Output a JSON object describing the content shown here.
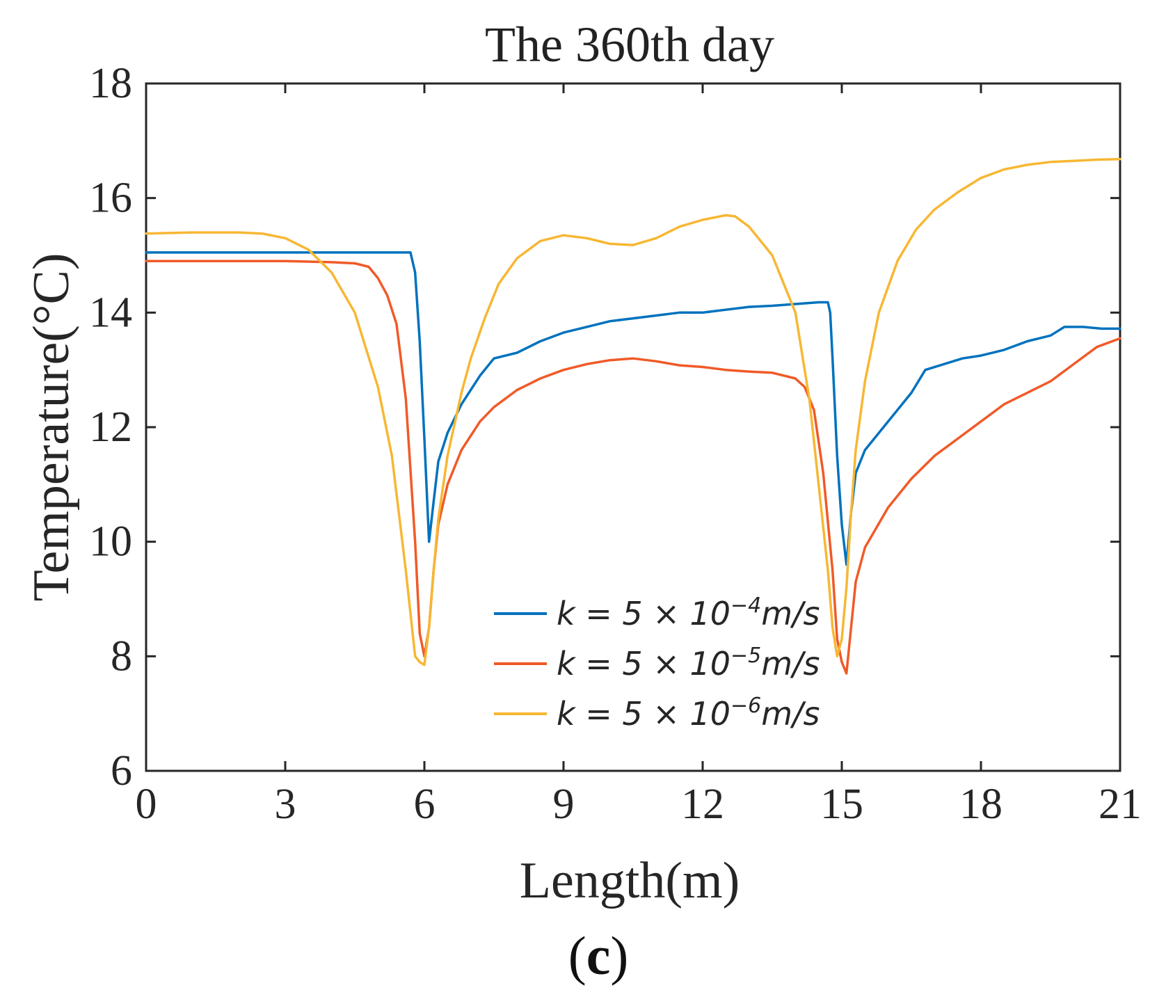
{
  "chart_data": {
    "type": "line",
    "title": "The 360th day",
    "xlabel": "Length(m)",
    "ylabel": "Temperature(°C)",
    "xlim": [
      0,
      21
    ],
    "ylim": [
      6,
      18
    ],
    "xticks": [
      0,
      3,
      6,
      9,
      12,
      15,
      18,
      21
    ],
    "yticks": [
      6,
      8,
      10,
      12,
      14,
      16,
      18
    ],
    "grid": false,
    "legend_position": "lower-center",
    "panel_label": "c",
    "series": [
      {
        "name": "k = 5 × 10^-4 m/s",
        "legend_base": "k = 5 × 10",
        "legend_exp": "−4",
        "legend_unit": "m/s",
        "color": "#0072BD",
        "x": [
          0,
          1,
          2,
          3,
          4,
          5,
          5.7,
          5.8,
          5.9,
          6.0,
          6.1,
          6.2,
          6.3,
          6.5,
          6.8,
          7.2,
          7.5,
          8,
          8.5,
          9,
          9.5,
          10,
          10.5,
          11,
          11.5,
          12,
          12.5,
          13,
          13.5,
          14,
          14.5,
          14.7,
          14.75,
          14.8,
          14.9,
          15.0,
          15.1,
          15.2,
          15.3,
          15.5,
          15.8,
          16.2,
          16.5,
          16.8,
          17.2,
          17.6,
          18,
          18.5,
          19,
          19.5,
          19.8,
          20.2,
          20.6,
          21
        ],
        "y": [
          15.05,
          15.05,
          15.05,
          15.05,
          15.05,
          15.05,
          15.05,
          14.7,
          13.5,
          11.8,
          10.0,
          10.7,
          11.4,
          11.9,
          12.4,
          12.9,
          13.2,
          13.3,
          13.5,
          13.65,
          13.75,
          13.85,
          13.9,
          13.95,
          14.0,
          14.0,
          14.05,
          14.1,
          14.12,
          14.15,
          14.18,
          14.18,
          14.0,
          13.2,
          11.5,
          10.3,
          9.6,
          10.5,
          11.2,
          11.6,
          11.9,
          12.3,
          12.6,
          13.0,
          13.1,
          13.2,
          13.25,
          13.35,
          13.5,
          13.6,
          13.75,
          13.75,
          13.72,
          13.72
        ]
      },
      {
        "name": "k = 5 × 10^-5 m/s",
        "legend_base": "k = 5 × 10",
        "legend_exp": "−5",
        "legend_unit": "m/s",
        "color": "#F05A28",
        "x": [
          0,
          1,
          2,
          3,
          4,
          4.5,
          4.8,
          5.0,
          5.2,
          5.4,
          5.6,
          5.8,
          5.9,
          6.0,
          6.1,
          6.2,
          6.3,
          6.5,
          6.8,
          7.2,
          7.5,
          8,
          8.5,
          9,
          9.5,
          10,
          10.5,
          11,
          11.5,
          12,
          12.5,
          13,
          13.5,
          14,
          14.2,
          14.4,
          14.6,
          14.8,
          14.9,
          15.0,
          15.1,
          15.2,
          15.3,
          15.5,
          16,
          16.5,
          17,
          17.5,
          18,
          18.5,
          19,
          19.5,
          20,
          20.5,
          21
        ],
        "y": [
          14.9,
          14.9,
          14.9,
          14.9,
          14.88,
          14.86,
          14.8,
          14.6,
          14.3,
          13.8,
          12.5,
          10.0,
          8.4,
          8.0,
          8.5,
          9.5,
          10.3,
          11.0,
          11.6,
          12.1,
          12.35,
          12.65,
          12.85,
          13.0,
          13.1,
          13.17,
          13.2,
          13.15,
          13.08,
          13.05,
          13.0,
          12.97,
          12.95,
          12.85,
          12.7,
          12.3,
          11.2,
          9.5,
          8.3,
          7.9,
          7.7,
          8.5,
          9.3,
          9.9,
          10.6,
          11.1,
          11.5,
          11.8,
          12.1,
          12.4,
          12.6,
          12.8,
          13.1,
          13.4,
          13.55
        ]
      },
      {
        "name": "k = 5 × 10^-6 m/s",
        "legend_base": "k = 5 × 10",
        "legend_exp": "−6",
        "legend_unit": "m/s",
        "color": "#F7B733",
        "x": [
          0,
          0.5,
          1,
          1.5,
          2,
          2.5,
          3,
          3.5,
          4,
          4.5,
          5,
          5.3,
          5.6,
          5.8,
          5.9,
          6.0,
          6.1,
          6.2,
          6.3,
          6.5,
          6.8,
          7.0,
          7.3,
          7.6,
          8,
          8.5,
          9,
          9.5,
          10,
          10.5,
          11,
          11.5,
          12,
          12.5,
          12.7,
          13,
          13.5,
          14,
          14.3,
          14.5,
          14.7,
          14.8,
          14.9,
          15.0,
          15.1,
          15.2,
          15.3,
          15.5,
          15.8,
          16.2,
          16.6,
          17,
          17.5,
          18,
          18.5,
          19,
          19.5,
          20,
          20.5,
          21
        ],
        "y": [
          15.38,
          15.39,
          15.4,
          15.4,
          15.4,
          15.38,
          15.3,
          15.1,
          14.7,
          14.0,
          12.7,
          11.5,
          9.5,
          8.0,
          7.9,
          7.85,
          8.5,
          9.5,
          10.4,
          11.5,
          12.6,
          13.2,
          13.9,
          14.5,
          14.95,
          15.25,
          15.35,
          15.3,
          15.2,
          15.18,
          15.3,
          15.5,
          15.62,
          15.7,
          15.68,
          15.5,
          15.0,
          14.0,
          12.5,
          11.0,
          9.5,
          8.5,
          8.0,
          8.3,
          9.2,
          10.5,
          11.6,
          12.8,
          14.0,
          14.9,
          15.45,
          15.8,
          16.1,
          16.35,
          16.5,
          16.58,
          16.63,
          16.65,
          16.67,
          16.68
        ]
      }
    ]
  }
}
